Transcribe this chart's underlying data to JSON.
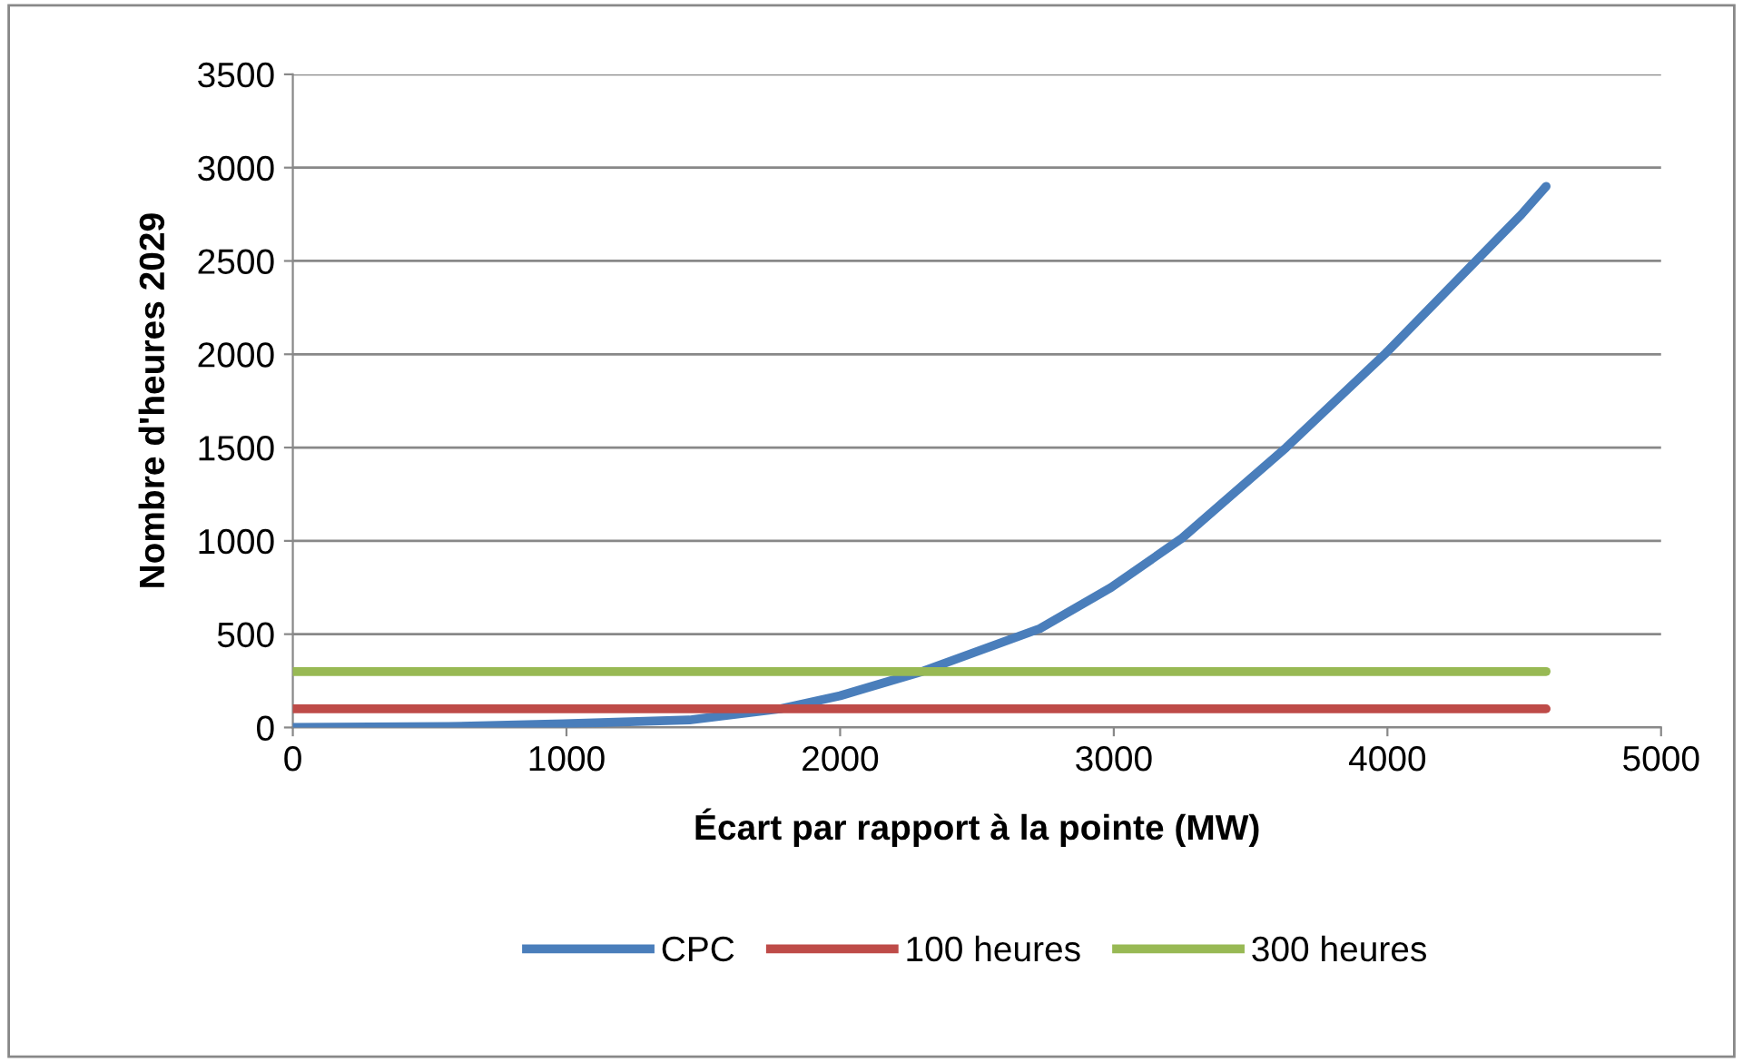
{
  "chart_data": {
    "type": "line",
    "xlabel": "Écart par rapport à la pointe (MW)",
    "ylabel": "Nombre d'heures 2029",
    "xlim": [
      0,
      5000
    ],
    "xticks": [
      0,
      1000,
      2000,
      3000,
      4000,
      5000
    ],
    "ylim": [
      0,
      3500
    ],
    "yticks": [
      0,
      500,
      1000,
      1500,
      2000,
      2500,
      3000,
      3500
    ],
    "grid": "y",
    "legend": "bottom",
    "marker": "none",
    "line_style": "solid",
    "series": [
      {
        "name": "CPC",
        "color": "#4a7ebb",
        "x": [
          0,
          570,
          990,
          1450,
          1780,
          2000,
          2300,
          2730,
          2990,
          3250,
          3630,
          3990,
          4490,
          4580
        ],
        "values": [
          0,
          5,
          20,
          40,
          100,
          170,
          300,
          530,
          750,
          1015,
          1500,
          2000,
          2750,
          2900
        ]
      },
      {
        "name": "100 heures",
        "color": "#be4b48",
        "x": [
          0,
          4580
        ],
        "values": [
          100,
          100
        ]
      },
      {
        "name": "300 heures",
        "color": "#98b954",
        "x": [
          0,
          4580
        ],
        "values": [
          300,
          300
        ]
      }
    ]
  }
}
